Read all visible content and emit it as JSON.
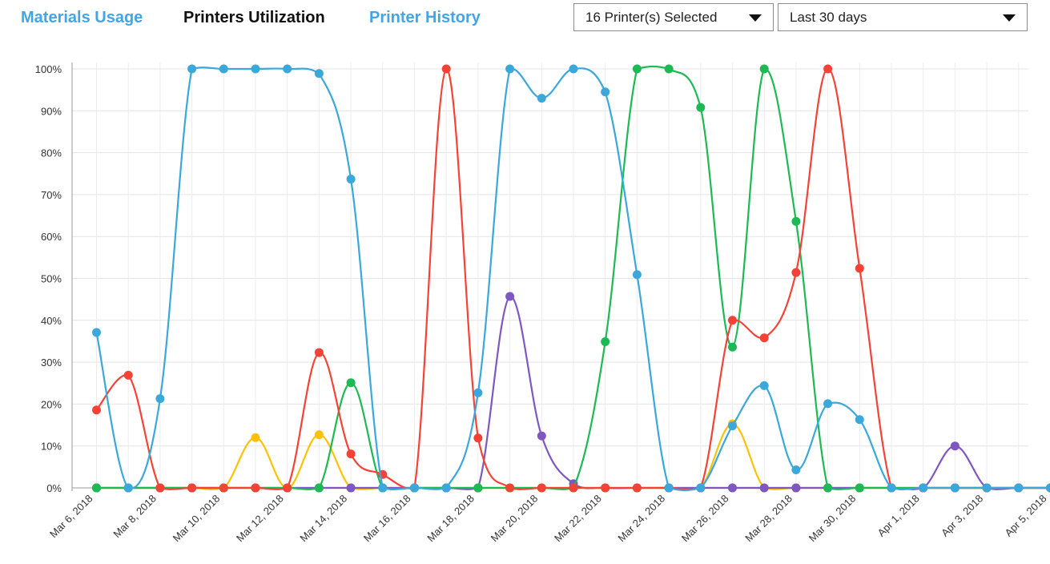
{
  "tabs": [
    {
      "label": "Materials Usage",
      "active": false
    },
    {
      "label": "Printers Utilization",
      "active": true
    },
    {
      "label": "Printer History",
      "active": false
    }
  ],
  "filters": {
    "printers": {
      "value": "16 Printer(s) Selected",
      "icon": "caret-down-icon"
    },
    "range": {
      "value": "Last 30 days",
      "icon": "caret-down-icon"
    }
  },
  "chart_data": {
    "type": "line",
    "x": [
      "Mar 6, 2018",
      "Mar 7, 2018",
      "Mar 8, 2018",
      "Mar 9, 2018",
      "Mar 10, 2018",
      "Mar 11, 2018",
      "Mar 12, 2018",
      "Mar 13, 2018",
      "Mar 14, 2018",
      "Mar 15, 2018",
      "Mar 16, 2018",
      "Mar 17, 2018",
      "Mar 18, 2018",
      "Mar 19, 2018",
      "Mar 20, 2018",
      "Mar 21, 2018",
      "Mar 22, 2018",
      "Mar 23, 2018",
      "Mar 24, 2018",
      "Mar 25, 2018",
      "Mar 26, 2018",
      "Mar 27, 2018",
      "Mar 28, 2018",
      "Mar 29, 2018",
      "Mar 30, 2018",
      "Mar 31, 2018",
      "Apr 1, 2018",
      "Apr 2, 2018",
      "Apr 3, 2018",
      "Apr 4, 2018",
      "Apr 5, 2018"
    ],
    "x_tick_labels": [
      "Mar 6, 2018",
      "Mar 8, 2018",
      "Mar 10, 2018",
      "Mar 12, 2018",
      "Mar 14, 2018",
      "Mar 16, 2018",
      "Mar 18, 2018",
      "Mar 20, 2018",
      "Mar 22, 2018",
      "Mar 24, 2018",
      "Mar 26, 2018",
      "Mar 28, 2018",
      "Mar 30, 2018",
      "Apr 1, 2018",
      "Apr 3, 2018",
      "Apr 5, 2018"
    ],
    "y_tick_labels": [
      "0%",
      "10%",
      "20%",
      "30%",
      "40%",
      "50%",
      "60%",
      "70%",
      "80%",
      "90%",
      "100%"
    ],
    "ylim": [
      0,
      100
    ],
    "grid": true,
    "series": [
      {
        "color": "#8bc34a",
        "values": [
          0,
          0,
          0,
          0,
          0,
          0,
          0,
          0,
          0,
          0,
          0,
          0,
          0,
          0,
          0,
          0,
          0,
          0,
          0,
          0,
          0,
          0,
          0,
          0,
          0,
          0,
          0,
          0,
          0,
          0,
          0
        ]
      },
      {
        "color": "#ffc107",
        "values": [
          0,
          0,
          0,
          0,
          0,
          12,
          0,
          12.7,
          0,
          0,
          0,
          0,
          0,
          0,
          0,
          0,
          0,
          0,
          0,
          0,
          15.3,
          0,
          0,
          0,
          0,
          0,
          0,
          0,
          0,
          0,
          0
        ]
      },
      {
        "color": "#7e57c2",
        "values": [
          0,
          0,
          0,
          0,
          0,
          0,
          0,
          0,
          0,
          0,
          0,
          0,
          0,
          45.7,
          12.4,
          1,
          0,
          0,
          0,
          0,
          0,
          0,
          0,
          0,
          0,
          0,
          0,
          10,
          0,
          0,
          0
        ]
      },
      {
        "color": "#1db954",
        "values": [
          0,
          0,
          0,
          0,
          0,
          0,
          0,
          0,
          25.1,
          0,
          0,
          0,
          0,
          0,
          0,
          0,
          34.9,
          100,
          100,
          90.8,
          33.6,
          100,
          63.6,
          0,
          0,
          0,
          0,
          0,
          0,
          0,
          0
        ]
      },
      {
        "color": "#f44336",
        "values": [
          18.6,
          26.9,
          0,
          0,
          0,
          0,
          0,
          32.3,
          8.1,
          3.2,
          0,
          100,
          11.9,
          0,
          0,
          0,
          0,
          0,
          0,
          0,
          40,
          35.8,
          51.4,
          100,
          52.4,
          0,
          0,
          0,
          0,
          0,
          0
        ]
      },
      {
        "color": "#3aa8db",
        "values": [
          37.1,
          0,
          21.3,
          100,
          100,
          100,
          100,
          98.9,
          73.7,
          0,
          0,
          0,
          22.7,
          100,
          93,
          100,
          94.5,
          50.9,
          0,
          0,
          14.8,
          24.4,
          4.3,
          20.1,
          16.3,
          0,
          0,
          0,
          0,
          0,
          0
        ]
      }
    ]
  }
}
